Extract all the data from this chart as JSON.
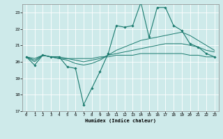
{
  "xlabel": "Humidex (Indice chaleur)",
  "ylabel": "",
  "bg_color": "#ceeaea",
  "line_color": "#1a7a6e",
  "grid_color": "#ffffff",
  "xlim": [
    -0.5,
    23.5
  ],
  "ylim": [
    17,
    23.5
  ],
  "yticks": [
    17,
    18,
    19,
    20,
    21,
    22,
    23
  ],
  "xticks": [
    0,
    1,
    2,
    3,
    4,
    5,
    6,
    7,
    8,
    9,
    10,
    11,
    12,
    13,
    14,
    15,
    16,
    17,
    18,
    19,
    20,
    21,
    22,
    23
  ],
  "line1_x": [
    0,
    1,
    2,
    3,
    4,
    5,
    6,
    7,
    8,
    9,
    10,
    11,
    12,
    13,
    14,
    15,
    16,
    17,
    18,
    19,
    20,
    21,
    22,
    23
  ],
  "line1_y": [
    20.3,
    19.8,
    20.4,
    20.3,
    20.3,
    19.7,
    19.6,
    17.4,
    18.4,
    19.4,
    20.5,
    22.2,
    22.1,
    22.2,
    23.6,
    21.5,
    23.3,
    23.3,
    22.2,
    21.9,
    21.1,
    20.9,
    20.5,
    20.3
  ],
  "line2_x": [
    0,
    1,
    2,
    3,
    4,
    5,
    6,
    7,
    8,
    9,
    10,
    11,
    12,
    13,
    14,
    15,
    16,
    17,
    18,
    19,
    20,
    21,
    22,
    23
  ],
  "line2_y": [
    20.3,
    20.0,
    20.4,
    20.3,
    20.2,
    20.1,
    19.9,
    19.8,
    19.9,
    20.1,
    20.4,
    20.7,
    20.9,
    21.1,
    21.3,
    21.4,
    21.5,
    21.6,
    21.7,
    21.8,
    21.6,
    21.3,
    21.0,
    20.7
  ],
  "line3_x": [
    0,
    1,
    2,
    3,
    4,
    5,
    6,
    7,
    8,
    9,
    10,
    11,
    12,
    13,
    14,
    15,
    16,
    17,
    18,
    19,
    20,
    21,
    22,
    23
  ],
  "line3_y": [
    20.3,
    20.1,
    20.4,
    20.3,
    20.2,
    20.2,
    20.1,
    20.0,
    20.1,
    20.2,
    20.4,
    20.5,
    20.6,
    20.7,
    20.8,
    20.9,
    21.0,
    21.1,
    21.1,
    21.1,
    21.0,
    20.9,
    20.7,
    20.6
  ],
  "line4_x": [
    0,
    1,
    2,
    3,
    4,
    5,
    6,
    7,
    8,
    9,
    10,
    11,
    12,
    13,
    14,
    15,
    16,
    17,
    18,
    19,
    20,
    21,
    22,
    23
  ],
  "line4_y": [
    20.3,
    20.2,
    20.4,
    20.3,
    20.3,
    20.2,
    20.2,
    20.2,
    20.2,
    20.3,
    20.3,
    20.4,
    20.4,
    20.4,
    20.5,
    20.5,
    20.5,
    20.5,
    20.5,
    20.5,
    20.4,
    20.4,
    20.3,
    20.3
  ]
}
